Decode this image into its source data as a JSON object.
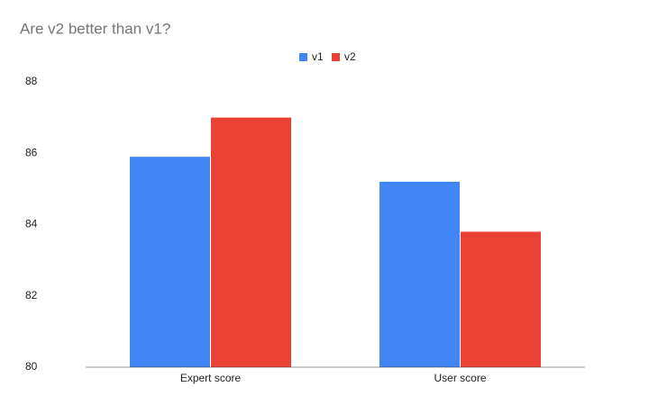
{
  "chart_data": {
    "type": "bar",
    "title": "Are v2 better than v1?",
    "categories": [
      "Expert score",
      "User score"
    ],
    "series": [
      {
        "name": "v1",
        "color": "#4285f4",
        "values": [
          85.9,
          85.2
        ]
      },
      {
        "name": "v2",
        "color": "#ea4335",
        "values": [
          87.0,
          83.8
        ]
      }
    ],
    "ylim": [
      80,
      88
    ],
    "yticks": [
      80,
      82,
      84,
      86,
      88
    ],
    "grid": false,
    "legend": "top"
  }
}
